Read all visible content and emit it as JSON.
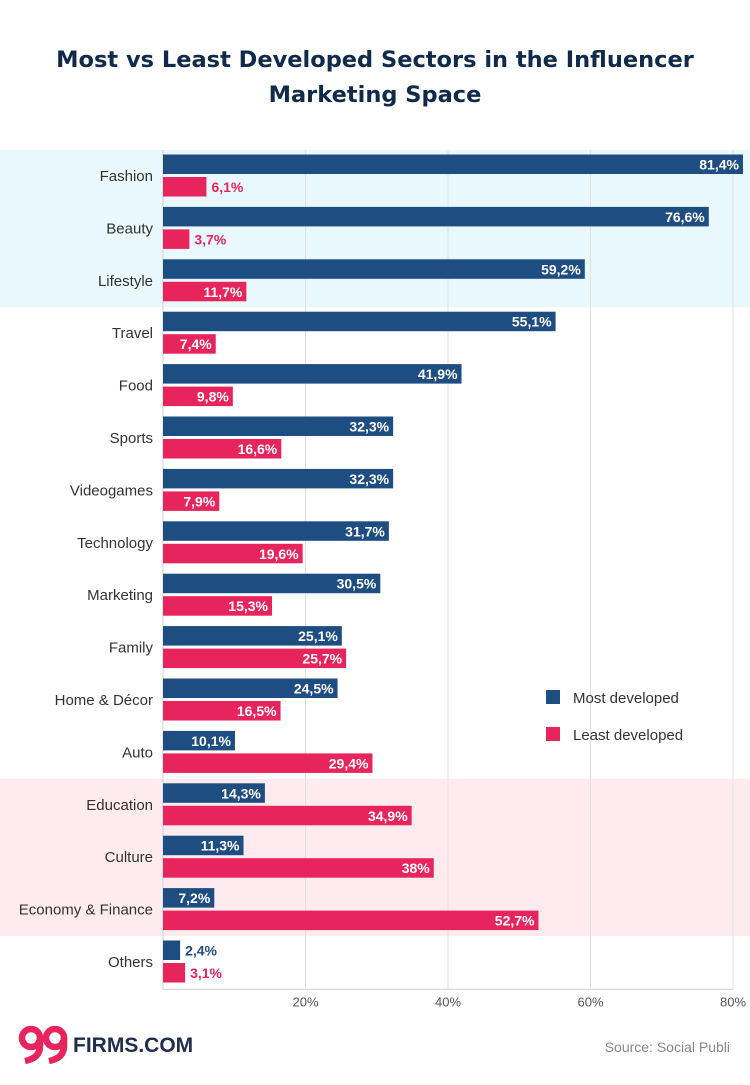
{
  "chart_data": {
    "type": "bar",
    "orientation": "horizontal",
    "title_lines": [
      "Most vs Least Developed Sectors in the Influencer",
      "Marketing Space"
    ],
    "categories": [
      "Fashion",
      "Beauty",
      "Lifestyle",
      "Travel",
      "Food",
      "Sports",
      "Videogames",
      "Technology",
      "Marketing",
      "Family",
      "Home & Décor",
      "Auto",
      "Education",
      "Culture",
      "Economy & Finance",
      "Others"
    ],
    "series": [
      {
        "name": "Most developed",
        "color": "#1e4d82",
        "values": [
          81.4,
          76.6,
          59.2,
          55.1,
          41.9,
          32.3,
          32.3,
          31.7,
          30.5,
          25.1,
          24.5,
          10.1,
          14.3,
          11.3,
          7.2,
          2.4
        ],
        "labels": [
          "81,4%",
          "76,6%",
          "59,2%",
          "55,1%",
          "41,9%",
          "32,3%",
          "32,3%",
          "31,7%",
          "30,5%",
          "25,1%",
          "24,5%",
          "10,1%",
          "14,3%",
          "11,3%",
          "7,2%",
          "2,4%"
        ]
      },
      {
        "name": "Least developed",
        "color": "#e8245c",
        "values": [
          6.1,
          3.7,
          11.7,
          7.4,
          9.8,
          16.6,
          7.9,
          19.6,
          15.3,
          25.7,
          16.5,
          29.4,
          34.9,
          38,
          52.7,
          3.1
        ],
        "labels": [
          "6,1%",
          "3,7%",
          "11,7%",
          "7,4%",
          "9,8%",
          "16,6%",
          "7,9%",
          "19,6%",
          "15,3%",
          "25,7%",
          "16,5%",
          "29,4%",
          "34,9%",
          "38%",
          "52,7%",
          "3,1%"
        ]
      }
    ],
    "xlim": [
      0,
      80
    ],
    "xticks": [
      20,
      40,
      60,
      80
    ],
    "xtick_labels": [
      "20%",
      "40%",
      "60%",
      "80%"
    ],
    "grid": true,
    "legend_position": "right",
    "highlight_bands": [
      {
        "from_category": "Fashion",
        "to_category": "Lifestyle",
        "color": "#e8f8fc"
      },
      {
        "from_category": "Education",
        "to_category": "Economy & Finance",
        "color": "#fdebf0"
      }
    ]
  },
  "branding": {
    "logo_number": "99",
    "logo_text": "FIRMS.COM",
    "logo_color": "#e8245c",
    "source": "Source: Social Publi"
  }
}
